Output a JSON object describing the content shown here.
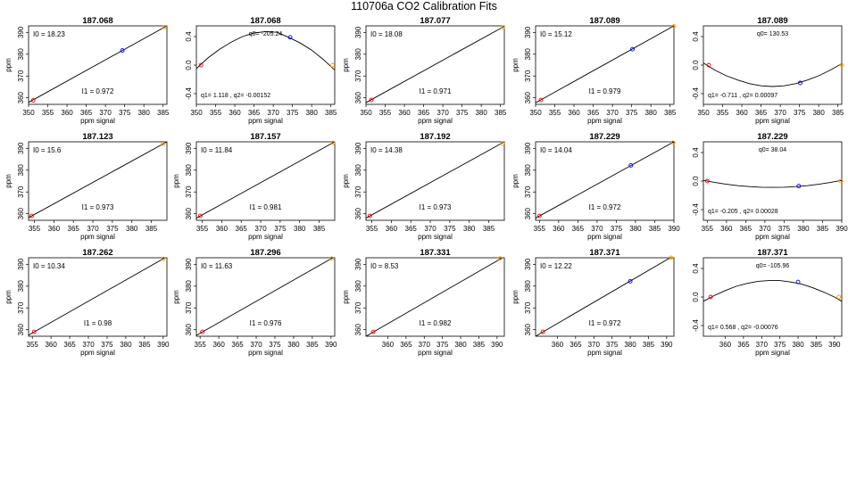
{
  "page": {
    "title": "110706a   CO2 Calibration Fits"
  },
  "chart_data": [
    {
      "type": "line",
      "fit": "linear",
      "title": "187.068",
      "xlabel": "ppm signal",
      "ylabel": "ppm",
      "xlim": [
        350,
        386
      ],
      "ylim": [
        357,
        393
      ],
      "xticks": [
        350,
        355,
        360,
        365,
        370,
        375,
        380,
        385
      ],
      "yticks": [
        360,
        370,
        380,
        390
      ],
      "annotation_top": "I0 =  18.23",
      "annotation_bottom": "I1 =  0.972",
      "points": [
        {
          "x": 351.2,
          "y": 358.8,
          "color": "#ff0000"
        },
        {
          "x": 374.4,
          "y": 381.7,
          "color": "#0000ff"
        },
        {
          "x": 385.4,
          "y": 392.4,
          "color": "#ffa500"
        }
      ],
      "line": [
        [
          350,
          357.9
        ],
        [
          386,
          393.0
        ]
      ]
    },
    {
      "type": "line",
      "fit": "quadratic",
      "title": "187.068",
      "xlabel": "ppm signal",
      "ylabel": "",
      "xlim": [
        350,
        386
      ],
      "ylim": [
        -0.55,
        0.55
      ],
      "xticks": [
        350,
        355,
        360,
        365,
        370,
        375,
        380,
        385
      ],
      "yticks": [
        -0.4,
        0.0,
        0.4
      ],
      "annotation_top": "q0= -205.24",
      "annotation_bottom": "q1= 1.118 , q2= -0.00152",
      "points": [
        {
          "x": 351.2,
          "y": 0.0,
          "color": "#ff0000"
        },
        {
          "x": 374.4,
          "y": 0.39,
          "color": "#0000ff"
        },
        {
          "x": 385.4,
          "y": 0.0,
          "color": "#ffa500"
        }
      ],
      "curve": {
        "x": [
          350,
          353,
          356,
          359,
          362,
          365,
          368,
          371,
          374,
          377,
          380,
          383,
          386
        ],
        "y": [
          -0.05,
          0.1,
          0.22,
          0.32,
          0.4,
          0.45,
          0.47,
          0.46,
          0.39,
          0.31,
          0.21,
          0.08,
          -0.07
        ]
      }
    },
    {
      "type": "line",
      "fit": "linear",
      "title": "187.077",
      "xlabel": "ppm signal",
      "ylabel": "ppm",
      "xlim": [
        350,
        386
      ],
      "ylim": [
        357,
        393
      ],
      "xticks": [
        350,
        355,
        360,
        365,
        370,
        375,
        380,
        385
      ],
      "yticks": [
        360,
        370,
        380,
        390
      ],
      "annotation_top": "I0 =  18.08",
      "annotation_bottom": "I1 =  0.971",
      "points": [
        {
          "x": 351.4,
          "y": 359.0,
          "color": "#ff0000"
        },
        {
          "x": 385.6,
          "y": 392.3,
          "color": "#ffa500"
        }
      ],
      "line": [
        [
          350,
          357.8
        ],
        [
          386,
          392.8
        ]
      ]
    },
    {
      "type": "line",
      "fit": "linear",
      "title": "187.089",
      "xlabel": "ppm signal",
      "ylabel": "ppm",
      "xlim": [
        350,
        386
      ],
      "ylim": [
        357,
        393
      ],
      "xticks": [
        350,
        355,
        360,
        365,
        370,
        375,
        380,
        385
      ],
      "yticks": [
        360,
        370,
        380,
        390
      ],
      "annotation_top": "I0 =  15.12",
      "annotation_bottom": "I1 =  0.979",
      "points": [
        {
          "x": 351.4,
          "y": 359.0,
          "color": "#ff0000"
        },
        {
          "x": 375.2,
          "y": 382.3,
          "color": "#0000ff"
        },
        {
          "x": 386.0,
          "y": 392.8,
          "color": "#ffa500"
        }
      ],
      "line": [
        [
          350,
          357.7
        ],
        [
          386,
          393.0
        ]
      ]
    },
    {
      "type": "line",
      "fit": "quadratic",
      "title": "187.089",
      "xlabel": "ppm signal",
      "ylabel": "",
      "xlim": [
        350,
        386
      ],
      "ylim": [
        -0.55,
        0.55
      ],
      "xticks": [
        350,
        355,
        360,
        365,
        370,
        375,
        380,
        385
      ],
      "yticks": [
        -0.4,
        0.0,
        0.4
      ],
      "annotation_top": "q0= 130.53",
      "annotation_bottom": "q1= -0.711 , q2= 0.00097",
      "points": [
        {
          "x": 351.4,
          "y": 0.0,
          "color": "#ff0000"
        },
        {
          "x": 375.2,
          "y": -0.25,
          "color": "#0000ff"
        },
        {
          "x": 386.0,
          "y": 0.0,
          "color": "#ffa500"
        }
      ],
      "curve": {
        "x": [
          350,
          353,
          356,
          359,
          362,
          365,
          368,
          371,
          374,
          377,
          380,
          383,
          386
        ],
        "y": [
          0.03,
          -0.07,
          -0.15,
          -0.21,
          -0.26,
          -0.29,
          -0.3,
          -0.29,
          -0.26,
          -0.21,
          -0.15,
          -0.07,
          0.02
        ]
      }
    },
    {
      "type": "line",
      "fit": "linear",
      "title": "187.123",
      "xlabel": "ppm signal",
      "ylabel": "ppm",
      "xlim": [
        353.5,
        389
      ],
      "ylim": [
        357,
        393
      ],
      "xticks": [
        355,
        360,
        365,
        370,
        375,
        380,
        385
      ],
      "yticks": [
        360,
        370,
        380,
        390
      ],
      "annotation_top": "I0 =  15.6",
      "annotation_bottom": "I1 =  0.973",
      "points": [
        {
          "x": 354.3,
          "y": 359.0,
          "color": "#ff0000"
        },
        {
          "x": 388.0,
          "y": 392.0,
          "color": "#ffa500"
        }
      ],
      "line": [
        [
          353.5,
          358.2
        ],
        [
          389,
          393.0
        ]
      ]
    },
    {
      "type": "line",
      "fit": "linear",
      "title": "187.157",
      "xlabel": "ppm signal",
      "ylabel": "ppm",
      "xlim": [
        353.5,
        389
      ],
      "ylim": [
        357,
        393
      ],
      "xticks": [
        355,
        360,
        365,
        370,
        375,
        380,
        385
      ],
      "yticks": [
        360,
        370,
        380,
        390
      ],
      "annotation_top": "I0 =  11.84",
      "annotation_bottom": "I1 =  0.981",
      "points": [
        {
          "x": 354.5,
          "y": 359.0,
          "color": "#ff0000"
        },
        {
          "x": 388.5,
          "y": 392.5,
          "color": "#ffa500"
        }
      ],
      "line": [
        [
          353.5,
          358.0
        ],
        [
          389,
          393.0
        ]
      ]
    },
    {
      "type": "line",
      "fit": "linear",
      "title": "187.192",
      "xlabel": "ppm signal",
      "ylabel": "ppm",
      "xlim": [
        353.5,
        389
      ],
      "ylim": [
        357,
        393
      ],
      "xticks": [
        355,
        360,
        365,
        370,
        375,
        380,
        385
      ],
      "yticks": [
        360,
        370,
        380,
        390
      ],
      "annotation_top": "I0 =  14.38",
      "annotation_bottom": "I1 =  0.973",
      "points": [
        {
          "x": 354.5,
          "y": 359.0,
          "color": "#ff0000"
        },
        {
          "x": 388.5,
          "y": 392.2,
          "color": "#ffa500"
        }
      ],
      "line": [
        [
          353.5,
          358.0
        ],
        [
          389,
          393.0
        ]
      ]
    },
    {
      "type": "line",
      "fit": "linear",
      "title": "187.229",
      "xlabel": "ppm signal",
      "ylabel": "ppm",
      "xlim": [
        354,
        390
      ],
      "ylim": [
        357,
        393
      ],
      "xticks": [
        355,
        360,
        365,
        370,
        375,
        380,
        385,
        390
      ],
      "yticks": [
        360,
        370,
        380,
        390
      ],
      "annotation_top": "I0 =  14.04",
      "annotation_bottom": "I1 =  0.972",
      "points": [
        {
          "x": 355.0,
          "y": 359.0,
          "color": "#ff0000"
        },
        {
          "x": 378.8,
          "y": 382.2,
          "color": "#0000ff"
        },
        {
          "x": 389.8,
          "y": 392.6,
          "color": "#ffa500"
        }
      ],
      "line": [
        [
          354,
          358.0
        ],
        [
          390,
          393.0
        ]
      ]
    },
    {
      "type": "line",
      "fit": "quadratic",
      "title": "187.229",
      "xlabel": "ppm signal",
      "ylabel": "",
      "xlim": [
        354,
        390
      ],
      "ylim": [
        -0.55,
        0.55
      ],
      "xticks": [
        355,
        360,
        365,
        370,
        375,
        380,
        385,
        390
      ],
      "yticks": [
        -0.4,
        0.0,
        0.4
      ],
      "annotation_top": "q0= 38.04",
      "annotation_bottom": "q1= -0.205 , q2= 0.00028",
      "points": [
        {
          "x": 355.0,
          "y": 0.0,
          "color": "#ff0000"
        },
        {
          "x": 378.8,
          "y": -0.07,
          "color": "#0000ff"
        },
        {
          "x": 389.8,
          "y": 0.0,
          "color": "#ffa500"
        }
      ],
      "curve": {
        "x": [
          354,
          357,
          360,
          363,
          366,
          369,
          372,
          375,
          378,
          381,
          384,
          387,
          390
        ],
        "y": [
          0.01,
          -0.02,
          -0.045,
          -0.065,
          -0.078,
          -0.086,
          -0.089,
          -0.086,
          -0.078,
          -0.065,
          -0.045,
          -0.02,
          0.01
        ]
      }
    },
    {
      "type": "line",
      "fit": "linear",
      "title": "187.262",
      "xlabel": "ppm signal",
      "ylabel": "ppm",
      "xlim": [
        354,
        391
      ],
      "ylim": [
        357,
        393
      ],
      "xticks": [
        355,
        360,
        365,
        370,
        375,
        380,
        385,
        390
      ],
      "yticks": [
        360,
        370,
        380,
        390
      ],
      "annotation_top": "I0 =  10.34",
      "annotation_bottom": "I1 =  0.98",
      "points": [
        {
          "x": 355.5,
          "y": 359.0,
          "color": "#ff0000"
        },
        {
          "x": 390.0,
          "y": 392.5,
          "color": "#ffa500"
        }
      ],
      "line": [
        [
          354,
          357.5
        ],
        [
          391,
          393.5
        ]
      ]
    },
    {
      "type": "line",
      "fit": "linear",
      "title": "187.296",
      "xlabel": "ppm signal",
      "ylabel": "ppm",
      "xlim": [
        354,
        391
      ],
      "ylim": [
        357,
        393
      ],
      "xticks": [
        355,
        360,
        365,
        370,
        375,
        380,
        385,
        390
      ],
      "yticks": [
        360,
        370,
        380,
        390
      ],
      "annotation_top": "I0 =  11.63",
      "annotation_bottom": "I1 =  0.976",
      "points": [
        {
          "x": 355.6,
          "y": 359.0,
          "color": "#ff0000"
        },
        {
          "x": 390.2,
          "y": 392.6,
          "color": "#ffa500"
        }
      ],
      "line": [
        [
          354,
          357.4
        ],
        [
          391,
          393.5
        ]
      ]
    },
    {
      "type": "line",
      "fit": "linear",
      "title": "187.331",
      "xlabel": "ppm signal",
      "ylabel": "ppm",
      "xlim": [
        354,
        392
      ],
      "ylim": [
        357,
        393
      ],
      "xticks": [
        360,
        365,
        370,
        375,
        380,
        385,
        390
      ],
      "yticks": [
        360,
        370,
        380,
        390
      ],
      "annotation_top": "I0 =  8.53",
      "annotation_bottom": "I1 =  0.982",
      "points": [
        {
          "x": 356.0,
          "y": 359.0,
          "color": "#ff0000"
        },
        {
          "x": 390.8,
          "y": 392.7,
          "color": "#ffa500"
        }
      ],
      "line": [
        [
          354,
          357.0
        ],
        [
          392,
          393.5
        ]
      ]
    },
    {
      "type": "line",
      "fit": "linear",
      "title": "187.371",
      "xlabel": "ppm signal",
      "ylabel": "ppm",
      "xlim": [
        354,
        392
      ],
      "ylim": [
        357,
        393
      ],
      "xticks": [
        360,
        365,
        370,
        375,
        380,
        385,
        390
      ],
      "yticks": [
        360,
        370,
        380,
        390
      ],
      "annotation_top": "I0 =  12.22",
      "annotation_bottom": "I1 =  0.972",
      "points": [
        {
          "x": 356.0,
          "y": 359.0,
          "color": "#ff0000"
        },
        {
          "x": 380.0,
          "y": 382.2,
          "color": "#0000ff"
        },
        {
          "x": 391.2,
          "y": 393.0,
          "color": "#ffa500"
        }
      ],
      "line": [
        [
          354,
          357.0
        ],
        [
          392,
          394.0
        ]
      ]
    },
    {
      "type": "line",
      "fit": "quadratic",
      "title": "187.371",
      "xlabel": "ppm signal",
      "ylabel": "",
      "xlim": [
        354,
        392
      ],
      "ylim": [
        -0.55,
        0.55
      ],
      "xticks": [
        360,
        365,
        370,
        375,
        380,
        385,
        390
      ],
      "yticks": [
        -0.4,
        0.0,
        0.4
      ],
      "annotation_top": "q0= -105.96",
      "annotation_bottom": "q1= 0.568 , q2= -0.00076",
      "points": [
        {
          "x": 356.0,
          "y": 0.0,
          "color": "#ff0000"
        },
        {
          "x": 380.0,
          "y": 0.21,
          "color": "#0000ff"
        },
        {
          "x": 391.2,
          "y": 0.0,
          "color": "#ffa500"
        }
      ],
      "curve": {
        "x": [
          354,
          357,
          360,
          363,
          366,
          369,
          372,
          375,
          378,
          381,
          384,
          387,
          390,
          392
        ],
        "y": [
          -0.06,
          0.02,
          0.09,
          0.15,
          0.19,
          0.22,
          0.23,
          0.23,
          0.21,
          0.18,
          0.13,
          0.07,
          0.0,
          -0.06
        ]
      }
    }
  ]
}
